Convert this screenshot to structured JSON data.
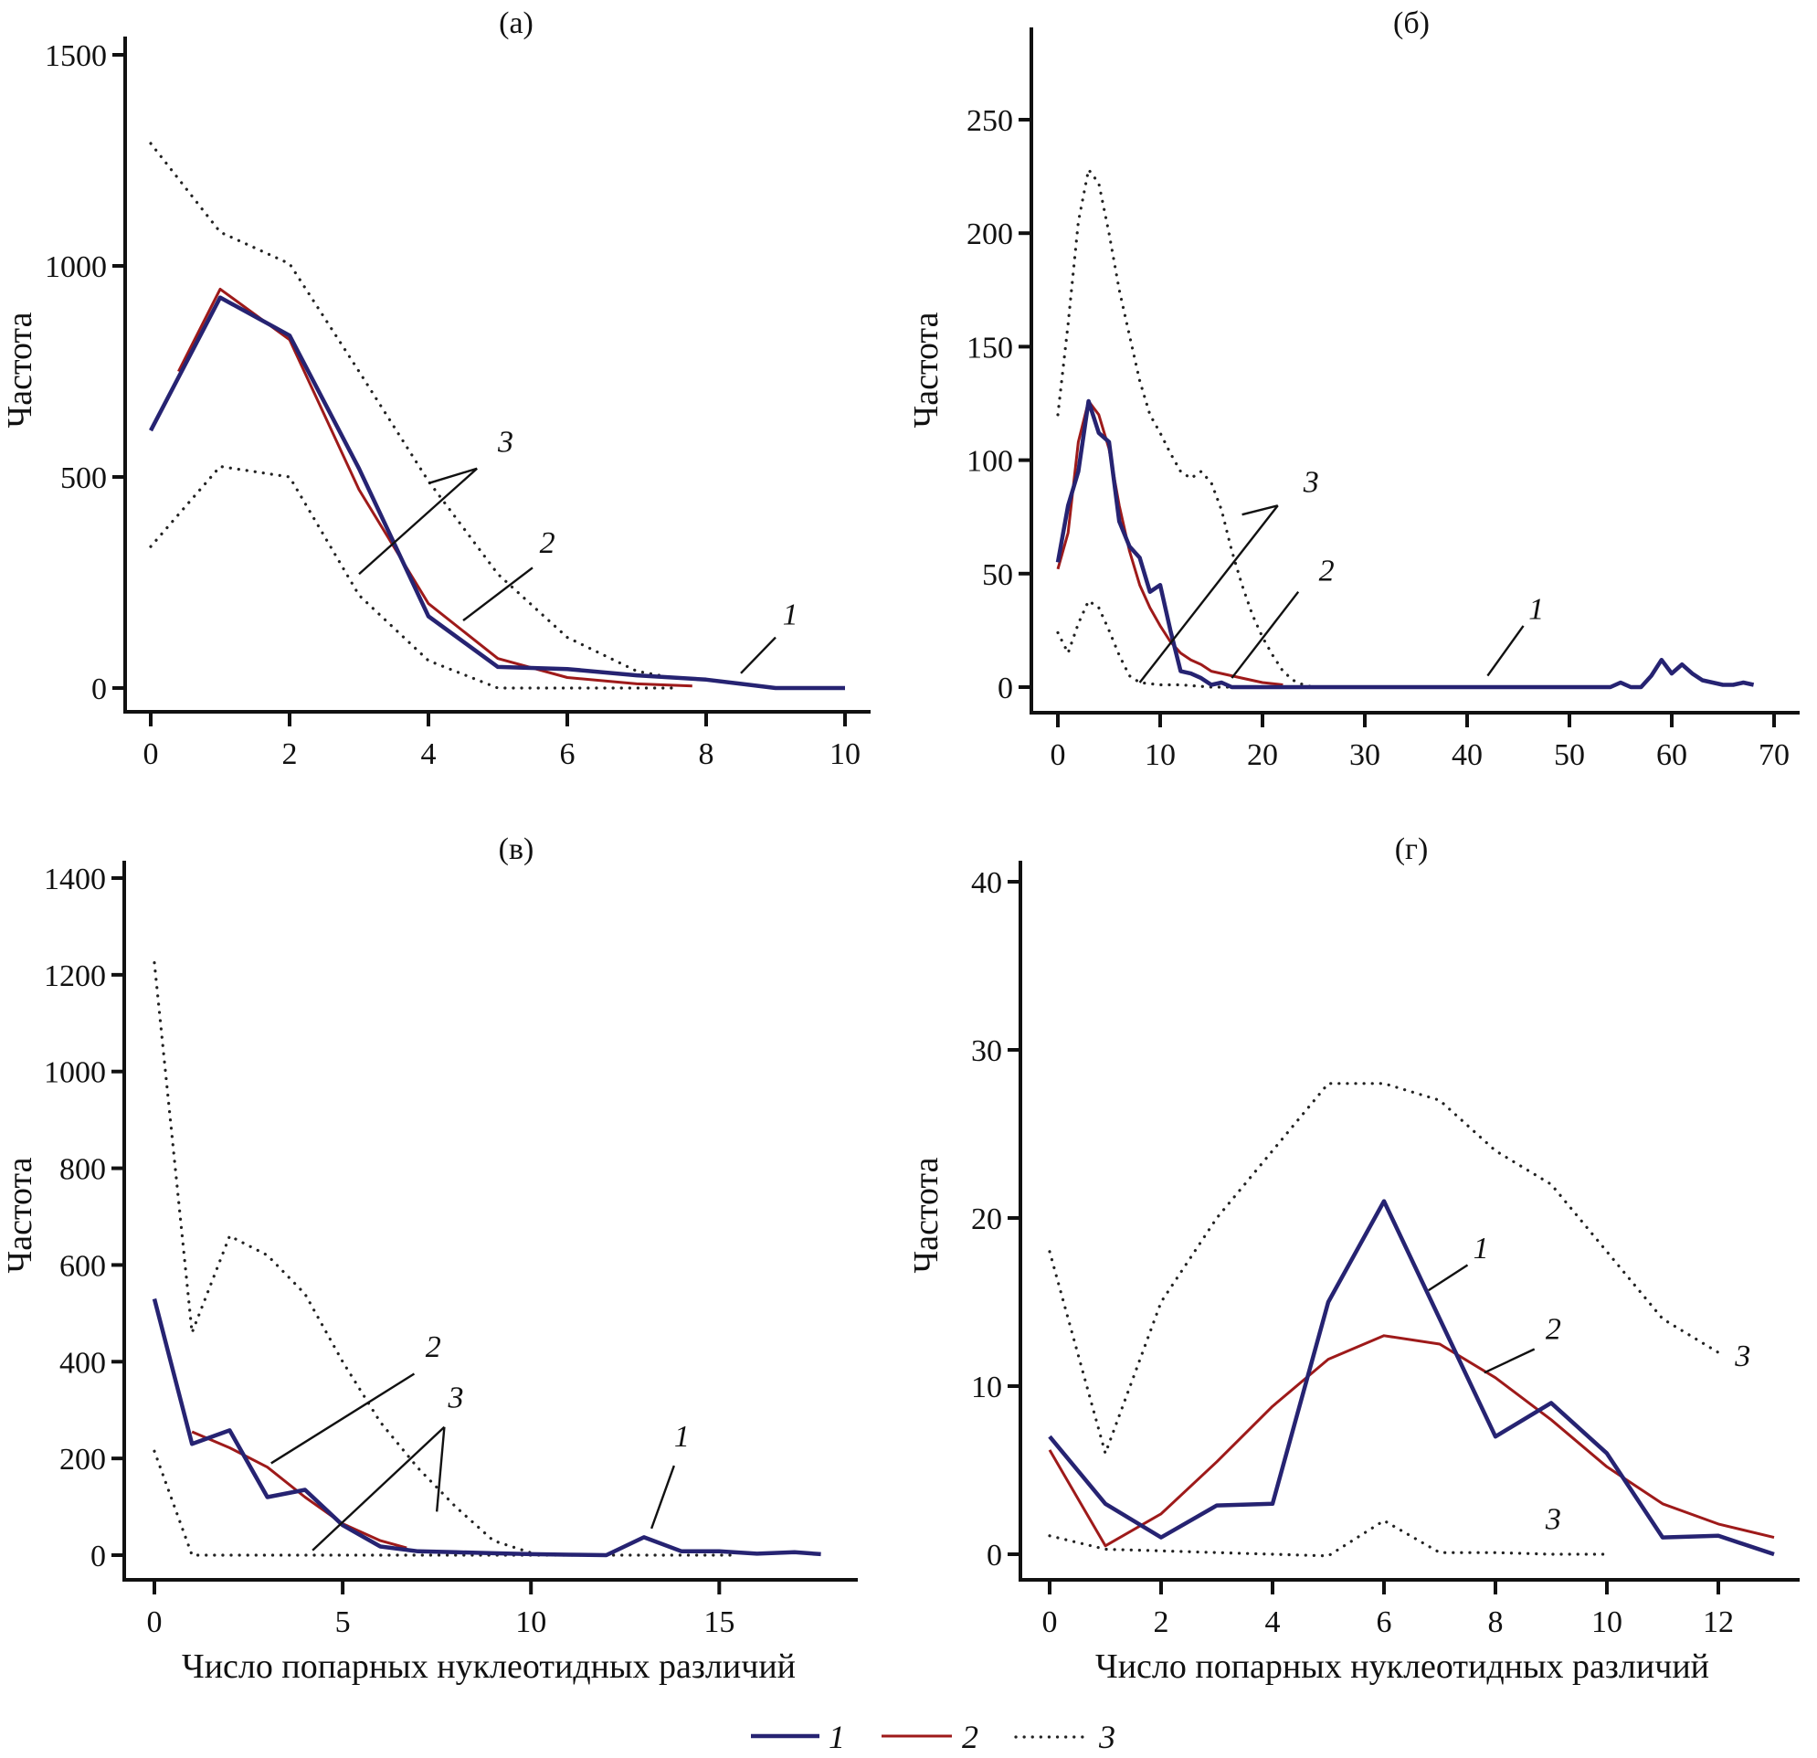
{
  "chart_data": [
    {
      "type": "line",
      "panel": "(а)",
      "title": "(a)",
      "xlabel": "",
      "ylabel": "Частота",
      "xlim": [
        0,
        10
      ],
      "ylim": [
        0,
        1500
      ],
      "xticks": [
        0,
        2,
        4,
        6,
        8,
        10
      ],
      "yticks": [
        0,
        500,
        1000,
        1500
      ],
      "series": [
        {
          "name": "1",
          "style": "solid-blue",
          "x": [
            0,
            1,
            2,
            3,
            4,
            5,
            6,
            7,
            8,
            8.5,
            9,
            10
          ],
          "y": [
            610,
            925,
            835,
            520,
            170,
            50,
            45,
            30,
            20,
            10,
            0,
            0
          ]
        },
        {
          "name": "2",
          "style": "solid-red",
          "x": [
            0.4,
            1,
            2,
            3,
            4,
            5,
            6,
            7,
            7.8
          ],
          "y": [
            750,
            945,
            825,
            470,
            200,
            70,
            25,
            10,
            5
          ]
        },
        {
          "name": "3",
          "style": "dotted-upper",
          "x": [
            0,
            1,
            2,
            3,
            4,
            5,
            6,
            7,
            7.5
          ],
          "y": [
            1290,
            1080,
            1005,
            750,
            490,
            270,
            120,
            40,
            25
          ]
        },
        {
          "name": "3",
          "style": "dotted-lower",
          "x": [
            0,
            1,
            2,
            3,
            4,
            5,
            6,
            7,
            7.5
          ],
          "y": [
            335,
            525,
            500,
            220,
            65,
            0,
            0,
            0,
            0
          ]
        }
      ],
      "annotations": [
        {
          "text": "3",
          "at": [
            5.0,
            560
          ],
          "lines": [
            [
              [
                4.7,
                520
              ],
              [
                4.0,
                485
              ]
            ],
            [
              [
                4.7,
                520
              ],
              [
                3.0,
                270
              ]
            ]
          ]
        },
        {
          "text": "2",
          "at": [
            5.6,
            320
          ],
          "lines": [
            [
              [
                5.5,
                285
              ],
              [
                4.5,
                160
              ]
            ]
          ]
        },
        {
          "text": "1",
          "at": [
            9.1,
            150
          ],
          "lines": [
            [
              [
                9.0,
                120
              ],
              [
                8.5,
                35
              ]
            ]
          ]
        }
      ]
    },
    {
      "type": "line",
      "panel": "(б)",
      "title": "(б)",
      "xlabel": "",
      "ylabel": "Частота",
      "xlim": [
        0,
        70
      ],
      "ylim": [
        0,
        250
      ],
      "xticks": [
        0,
        10,
        20,
        30,
        40,
        50,
        60,
        70
      ],
      "yticks": [
        0,
        50,
        100,
        150,
        200,
        250
      ],
      "series": [
        {
          "name": "1",
          "style": "solid-blue",
          "x": [
            0,
            1,
            2,
            3,
            4,
            5,
            6,
            7,
            8,
            9,
            10,
            11,
            12,
            13,
            14,
            15,
            16,
            17,
            54,
            55,
            56,
            57,
            58,
            59,
            60,
            61,
            62,
            63,
            64,
            65,
            66,
            67,
            68
          ],
          "y": [
            55,
            80,
            95,
            126,
            112,
            108,
            73,
            62,
            57,
            42,
            45,
            25,
            7,
            6,
            4,
            1,
            2,
            0,
            0,
            2,
            0,
            0,
            5,
            12,
            6,
            10,
            6,
            3,
            2,
            1,
            1,
            2,
            1
          ]
        },
        {
          "name": "2",
          "style": "solid-red",
          "x": [
            0,
            1,
            2,
            3,
            4,
            5,
            6,
            7,
            8,
            9,
            10,
            11,
            12,
            13,
            14,
            15,
            16,
            18,
            20,
            22
          ],
          "y": [
            52,
            68,
            108,
            126,
            120,
            105,
            80,
            60,
            45,
            35,
            27,
            20,
            15,
            12,
            10,
            7,
            6,
            4,
            2,
            1
          ]
        },
        {
          "name": "3",
          "style": "dotted-upper",
          "x": [
            0,
            1,
            2,
            3,
            4,
            5,
            6,
            7,
            8,
            9,
            10,
            11,
            12,
            13,
            14,
            15,
            16,
            17,
            18,
            19,
            20,
            21,
            22,
            23,
            24,
            25
          ],
          "y": [
            120,
            160,
            205,
            228,
            222,
            200,
            175,
            155,
            135,
            120,
            112,
            103,
            95,
            92,
            95,
            90,
            78,
            60,
            45,
            32,
            22,
            14,
            7,
            3,
            1,
            0
          ]
        },
        {
          "name": "3",
          "style": "dotted-lower",
          "x": [
            0,
            1,
            2,
            3,
            4,
            5,
            6,
            7,
            8,
            10,
            12,
            15,
            17
          ],
          "y": [
            24,
            15,
            28,
            38,
            35,
            25,
            14,
            5,
            2,
            1,
            1,
            0,
            0
          ]
        }
      ],
      "annotations": [
        {
          "text": "3",
          "at": [
            24.0,
            86
          ],
          "lines": [
            [
              [
                21.5,
                80
              ],
              [
                18.0,
                76
              ]
            ],
            [
              [
                21.5,
                80
              ],
              [
                8.0,
                2
              ]
            ]
          ]
        },
        {
          "text": "2",
          "at": [
            25.5,
            47
          ],
          "lines": [
            [
              [
                23.5,
                42
              ],
              [
                17.0,
                4
              ]
            ]
          ]
        },
        {
          "text": "1",
          "at": [
            46.0,
            30
          ],
          "lines": [
            [
              [
                45.5,
                27
              ],
              [
                42.0,
                5
              ]
            ]
          ]
        }
      ]
    },
    {
      "type": "line",
      "panel": "(в)",
      "title": "(в)",
      "xlabel": "Число попарных нуклеотидных различий",
      "ylabel": "Частота",
      "xlim": [
        0,
        18
      ],
      "ylim": [
        0,
        1400
      ],
      "xticks": [
        0,
        5,
        10,
        15
      ],
      "yticks": [
        0,
        200,
        400,
        600,
        800,
        1000,
        1200,
        1400
      ],
      "series": [
        {
          "name": "1",
          "style": "solid-blue",
          "x": [
            0,
            1,
            2,
            3,
            4,
            5,
            6,
            7,
            8,
            9,
            10,
            11,
            12,
            13,
            14,
            15,
            16,
            17,
            17.7
          ],
          "y": [
            530,
            230,
            258,
            120,
            135,
            62,
            18,
            8,
            6,
            4,
            2,
            1,
            0,
            37,
            8,
            8,
            3,
            6,
            2
          ]
        },
        {
          "name": "2",
          "style": "solid-red",
          "x": [
            1,
            2,
            3,
            4,
            5,
            6,
            6.7
          ],
          "y": [
            255,
            222,
            182,
            120,
            65,
            30,
            15
          ]
        },
        {
          "name": "3",
          "style": "dotted-upper",
          "x": [
            0,
            1,
            2,
            3,
            4,
            5,
            6,
            7,
            8,
            9,
            10
          ],
          "y": [
            1225,
            460,
            660,
            620,
            540,
            400,
            275,
            180,
            100,
            30,
            5
          ]
        },
        {
          "name": "3",
          "style": "dotted-lower",
          "x": [
            0,
            1,
            4,
            8,
            12,
            15.5
          ],
          "y": [
            215,
            0,
            0,
            0,
            0,
            0
          ]
        }
      ],
      "annotations": [
        {
          "text": "2",
          "at": [
            7.2,
            410
          ],
          "lines": [
            [
              [
                6.9,
                375
              ],
              [
                3.1,
                190
              ]
            ]
          ]
        },
        {
          "text": "3",
          "at": [
            7.8,
            305
          ],
          "lines": [
            [
              [
                7.7,
                265
              ],
              [
                4.2,
                10
              ]
            ],
            [
              [
                7.7,
                265
              ],
              [
                7.5,
                90
              ]
            ]
          ]
        },
        {
          "text": "1",
          "at": [
            13.8,
            225
          ],
          "lines": [
            [
              [
                13.8,
                185
              ],
              [
                13.2,
                55
              ]
            ]
          ]
        }
      ]
    },
    {
      "type": "line",
      "panel": "(г)",
      "title": "(г)",
      "xlabel": "Число попарных нуклеотидных различий",
      "ylabel": "Частота",
      "xlim": [
        0,
        13
      ],
      "ylim": [
        0,
        40
      ],
      "xticks": [
        0,
        2,
        4,
        6,
        8,
        10,
        12
      ],
      "yticks": [
        0,
        10,
        20,
        30,
        40
      ],
      "series": [
        {
          "name": "1",
          "style": "solid-blue",
          "x": [
            0,
            1,
            2,
            3,
            4,
            5,
            6,
            7,
            8,
            9,
            10,
            11,
            12,
            13
          ],
          "y": [
            7,
            3,
            1,
            2.9,
            3,
            15,
            21,
            14,
            7,
            9,
            6,
            1,
            1.1,
            0
          ]
        },
        {
          "name": "2",
          "style": "solid-red",
          "x": [
            0,
            1,
            2,
            3,
            4,
            5,
            6,
            7,
            8,
            9,
            10,
            11,
            12,
            13
          ],
          "y": [
            6.2,
            0.5,
            2.4,
            5.5,
            8.8,
            11.6,
            13,
            12.5,
            10.5,
            8,
            5.2,
            3,
            1.8,
            1
          ]
        },
        {
          "name": "3",
          "style": "dotted-upper",
          "x": [
            0,
            1,
            2,
            3,
            4,
            5,
            6,
            7,
            8,
            9,
            10,
            11,
            12
          ],
          "y": [
            18,
            6,
            15,
            20,
            24,
            28,
            28,
            27,
            24,
            22,
            18,
            14,
            12
          ]
        },
        {
          "name": "3",
          "style": "dotted-lower",
          "x": [
            0,
            1,
            2,
            3,
            4,
            5,
            6,
            7,
            8,
            9,
            10
          ],
          "y": [
            1.1,
            0.3,
            0.2,
            0.1,
            0,
            -0.1,
            2,
            0.1,
            0.1,
            0,
            0
          ]
        }
      ],
      "annotations": [
        {
          "text": "1",
          "at": [
            7.6,
            17.6
          ],
          "lines": [
            [
              [
                7.5,
                17.2
              ],
              [
                6.8,
                15.7
              ]
            ]
          ]
        },
        {
          "text": "2",
          "at": [
            8.9,
            12.8
          ],
          "lines": [
            [
              [
                8.7,
                12.2
              ],
              [
                7.8,
                10.8
              ]
            ]
          ]
        },
        {
          "text": "3",
          "at": [
            12.3,
            11.2
          ],
          "lines": []
        },
        {
          "text": "3",
          "at": [
            8.9,
            1.5
          ],
          "lines": []
        }
      ]
    }
  ],
  "legend": {
    "placement": "bottom-center",
    "items": [
      {
        "label": "1",
        "style": "solid-blue"
      },
      {
        "label": "2",
        "style": "solid-red"
      },
      {
        "label": "3",
        "style": "dotted"
      }
    ]
  },
  "colors": {
    "series1": "#262372",
    "series2": "#9e1a1a",
    "series3": "#222222"
  }
}
